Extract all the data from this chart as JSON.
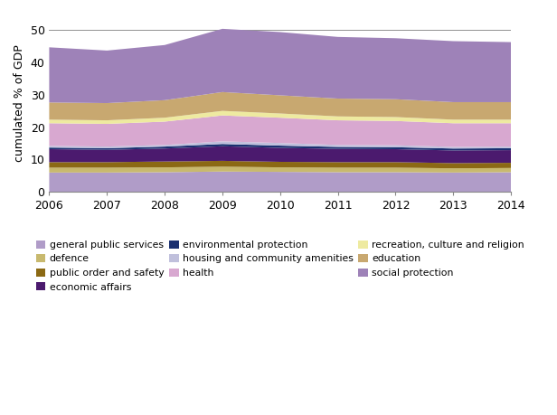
{
  "years": [
    2006,
    2007,
    2008,
    2009,
    2010,
    2011,
    2012,
    2013,
    2014
  ],
  "ylabel": "cumulated % of GDP",
  "ylim": [
    0,
    55
  ],
  "yticks": [
    0,
    10,
    20,
    30,
    40,
    50
  ],
  "stack_order": [
    "general public services",
    "defence",
    "public order and safety",
    "economic affairs",
    "environmental protection",
    "housing and community amenities",
    "health",
    "recreation, culture and religion",
    "education",
    "social protection"
  ],
  "legend_order": [
    "general public services",
    "defence",
    "public order and safety",
    "economic affairs",
    "environmental protection",
    "housing and community amenities",
    "health",
    "recreation, culture and religion",
    "education",
    "social protection"
  ],
  "series": {
    "general public services": {
      "values": [
        6.0,
        6.0,
        6.1,
        6.3,
        6.2,
        6.1,
        6.1,
        6.0,
        6.1
      ],
      "color": "#b09cc8"
    },
    "defence": {
      "values": [
        1.5,
        1.5,
        1.5,
        1.5,
        1.4,
        1.4,
        1.4,
        1.3,
        1.3
      ],
      "color": "#c8b96e"
    },
    "public order and safety": {
      "values": [
        1.7,
        1.7,
        1.8,
        1.8,
        1.7,
        1.7,
        1.7,
        1.6,
        1.6
      ],
      "color": "#8b6914"
    },
    "economic affairs": {
      "values": [
        4.0,
        3.8,
        4.0,
        4.5,
        4.3,
        4.1,
        4.0,
        3.9,
        3.9
      ],
      "color": "#4b1a6e"
    },
    "environmental protection": {
      "values": [
        0.5,
        0.5,
        0.6,
        0.7,
        0.7,
        0.6,
        0.6,
        0.6,
        0.6
      ],
      "color": "#1a3070"
    },
    "housing and community amenities": {
      "values": [
        0.5,
        0.5,
        0.5,
        0.8,
        0.8,
        0.6,
        0.6,
        0.5,
        0.5
      ],
      "color": "#c0c0dc"
    },
    "health": {
      "values": [
        7.0,
        7.0,
        7.2,
        8.0,
        7.8,
        7.6,
        7.5,
        7.3,
        7.2
      ],
      "color": "#d8a8d0"
    },
    "recreation, culture and religion": {
      "values": [
        1.1,
        1.1,
        1.2,
        1.4,
        1.3,
        1.2,
        1.2,
        1.1,
        1.1
      ],
      "color": "#eeeaa0"
    },
    "education": {
      "values": [
        5.3,
        5.3,
        5.4,
        5.8,
        5.6,
        5.5,
        5.5,
        5.4,
        5.4
      ],
      "color": "#c8a870"
    },
    "social protection": {
      "values": [
        17.0,
        16.2,
        17.0,
        19.5,
        19.5,
        19.0,
        18.8,
        18.8,
        18.5
      ],
      "color": "#9e82b8"
    }
  }
}
